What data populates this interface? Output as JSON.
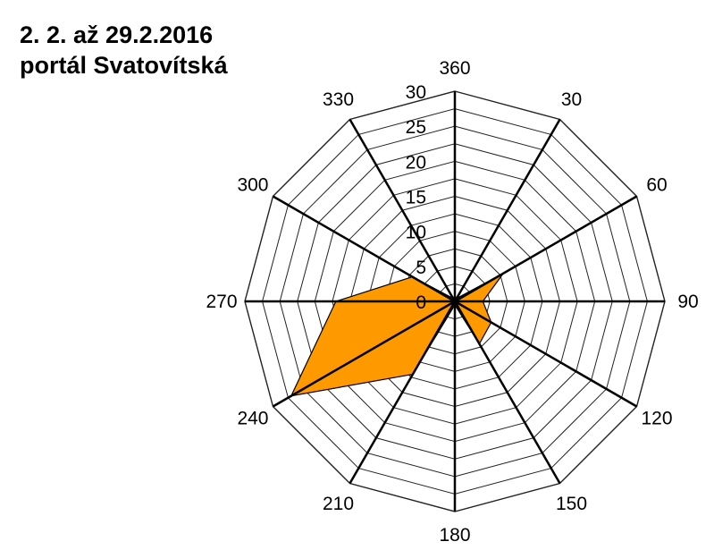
{
  "title": {
    "line1": "2. 2. až 29.2.2016",
    "line2": "portál  Svatovítská"
  },
  "chart_data": {
    "type": "radar",
    "title": "2. 2. až 29.2.2016 portál  Svatovítská",
    "directions": [
      "360",
      "30",
      "60",
      "90",
      "120",
      "150",
      "180",
      "210",
      "240",
      "270",
      "300",
      "330"
    ],
    "radial_ticks": [
      "0",
      "5",
      "10",
      "15",
      "20",
      "25",
      "30"
    ],
    "rlim": [
      0,
      30
    ],
    "grid": true,
    "series": [
      {
        "values": [
          0.5,
          0.5,
          8,
          4,
          6,
          7,
          0.5,
          12,
          27,
          17,
          7,
          0.5
        ],
        "color": "#FF9900"
      }
    ]
  }
}
